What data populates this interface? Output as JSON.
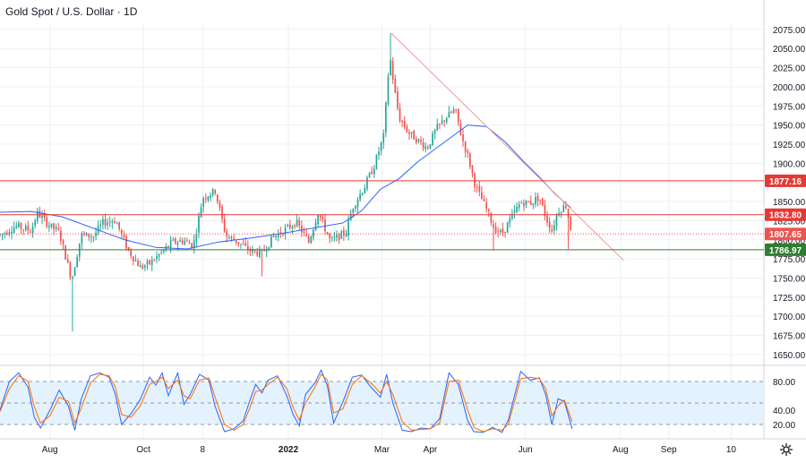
{
  "header": {
    "title": "Gold Spot / U.S. Dollar · 1D"
  },
  "colors": {
    "up": "#26a69a",
    "down": "#ef5350",
    "ma": "#2962ff",
    "trendline": "#ef9a9a",
    "resistance": "#e53935",
    "support": "#2e7d32",
    "last_price": "#ef5350",
    "stoch_k": "#2962ff",
    "stoch_d": "#ff6d00",
    "stoch_band": "#e3f2fd",
    "grid": "#eef0f3",
    "axis_text": "#131722"
  },
  "icons": {
    "settings": "gear-icon"
  },
  "chart_data": [
    {
      "type": "candlestick",
      "title": "Gold Spot / U.S. Dollar · 1D",
      "y_ticks": [
        1650,
        1675,
        1700,
        1725,
        1750,
        1775,
        1800,
        1825,
        1850,
        1875,
        1900,
        1925,
        1950,
        1975,
        2000,
        2025,
        2050,
        2075
      ],
      "y_tick_labels": [
        "1650.00",
        "1675.00",
        "1700.00",
        "1725.00",
        "1750.00",
        "1775.00",
        "1800.00",
        "1825.00",
        "1850.00",
        "1875.00",
        "1900.00",
        "1925.00",
        "1950.00",
        "1975.00",
        "2000.00",
        "2025.00",
        "2050.00",
        "2075.00"
      ],
      "ylim": [
        1637,
        2083
      ],
      "x_ticks": [
        {
          "label": "Aug",
          "day": 32
        },
        {
          "label": "Oct",
          "day": 92
        },
        {
          "label": "8",
          "day": 130
        },
        {
          "label": "2022",
          "day": 185
        },
        {
          "label": "Mar",
          "day": 245
        },
        {
          "label": "Apr",
          "day": 276
        },
        {
          "label": "Jun",
          "day": 337
        },
        {
          "label": "Aug",
          "day": 398
        },
        {
          "label": "Sep",
          "day": 429
        },
        {
          "label": "10",
          "day": 469
        }
      ],
      "xlim": [
        0,
        490
      ],
      "horizontal_levels": [
        {
          "value": 1877.16,
          "label": "1877.16",
          "role": "resistance"
        },
        {
          "value": 1832.8,
          "label": "1832.80",
          "role": "resistance"
        },
        {
          "value": 1786.97,
          "label": "1786.97",
          "role": "support"
        }
      ],
      "last_price": {
        "value": 1807.65,
        "label": "1807.65"
      },
      "trendline": {
        "from": [
          251,
          2070
        ],
        "to": [
          400,
          1773
        ]
      },
      "anchors": [
        [
          0,
          1806
        ],
        [
          10,
          1818
        ],
        [
          20,
          1812
        ],
        [
          24,
          1835
        ],
        [
          32,
          1818
        ],
        [
          38,
          1810
        ],
        [
          44,
          1763
        ],
        [
          46,
          1748
        ],
        [
          52,
          1806
        ],
        [
          60,
          1805
        ],
        [
          66,
          1822
        ],
        [
          74,
          1826
        ],
        [
          82,
          1787
        ],
        [
          90,
          1764
        ],
        [
          96,
          1769
        ],
        [
          104,
          1784
        ],
        [
          110,
          1796
        ],
        [
          118,
          1799
        ],
        [
          124,
          1792
        ],
        [
          130,
          1855
        ],
        [
          138,
          1864
        ],
        [
          145,
          1805
        ],
        [
          152,
          1798
        ],
        [
          160,
          1786
        ],
        [
          168,
          1782
        ],
        [
          175,
          1803
        ],
        [
          182,
          1812
        ],
        [
          190,
          1823
        ],
        [
          198,
          1797
        ],
        [
          204,
          1836
        ],
        [
          212,
          1798
        ],
        [
          222,
          1810
        ],
        [
          226,
          1842
        ],
        [
          234,
          1870
        ],
        [
          240,
          1897
        ],
        [
          246,
          1935
        ],
        [
          250,
          2042
        ],
        [
          253,
          1996
        ],
        [
          256,
          1960
        ],
        [
          262,
          1940
        ],
        [
          268,
          1930
        ],
        [
          274,
          1920
        ],
        [
          280,
          1945
        ],
        [
          286,
          1960
        ],
        [
          292,
          1970
        ],
        [
          296,
          1935
        ],
        [
          300,
          1910
        ],
        [
          305,
          1870
        ],
        [
          312,
          1840
        ],
        [
          317,
          1815
        ],
        [
          322,
          1808
        ],
        [
          326,
          1822
        ],
        [
          334,
          1849
        ],
        [
          340,
          1848
        ],
        [
          346,
          1856
        ],
        [
          350,
          1830
        ],
        [
          354,
          1812
        ],
        [
          358,
          1838
        ],
        [
          363,
          1845
        ],
        [
          367,
          1805
        ]
      ],
      "ma_series": [
        [
          0,
          1836
        ],
        [
          20,
          1837
        ],
        [
          40,
          1830
        ],
        [
          60,
          1815
        ],
        [
          80,
          1800
        ],
        [
          100,
          1790
        ],
        [
          120,
          1788
        ],
        [
          140,
          1797
        ],
        [
          160,
          1802
        ],
        [
          180,
          1808
        ],
        [
          200,
          1815
        ],
        [
          220,
          1822
        ],
        [
          232,
          1838
        ],
        [
          244,
          1866
        ],
        [
          256,
          1880
        ],
        [
          268,
          1902
        ],
        [
          280,
          1920
        ],
        [
          292,
          1938
        ],
        [
          300,
          1950
        ],
        [
          312,
          1948
        ],
        [
          324,
          1928
        ],
        [
          336,
          1902
        ],
        [
          346,
          1882
        ],
        [
          356,
          1860
        ],
        [
          366,
          1842
        ]
      ]
    },
    {
      "type": "line",
      "title": "Stochastic",
      "ylim": [
        0,
        100
      ],
      "y_ticks": [
        20,
        40,
        80
      ],
      "y_tick_labels": [
        "20.00",
        "40.00",
        "80.00"
      ],
      "band": [
        20,
        80
      ],
      "midline": 50,
      "series": [
        {
          "role": "k",
          "points": [
            [
              0,
              40
            ],
            [
              6,
              80
            ],
            [
              12,
              92
            ],
            [
              18,
              72
            ],
            [
              22,
              30
            ],
            [
              26,
              15
            ],
            [
              32,
              40
            ],
            [
              38,
              68
            ],
            [
              44,
              45
            ],
            [
              48,
              12
            ],
            [
              52,
              55
            ],
            [
              58,
              88
            ],
            [
              64,
              92
            ],
            [
              70,
              86
            ],
            [
              74,
              62
            ],
            [
              78,
              20
            ],
            [
              84,
              35
            ],
            [
              90,
              55
            ],
            [
              96,
              86
            ],
            [
              100,
              75
            ],
            [
              104,
              92
            ],
            [
              108,
              60
            ],
            [
              114,
              92
            ],
            [
              118,
              48
            ],
            [
              122,
              62
            ],
            [
              128,
              90
            ],
            [
              134,
              82
            ],
            [
              138,
              45
            ],
            [
              144,
              10
            ],
            [
              150,
              14
            ],
            [
              156,
              25
            ],
            [
              160,
              52
            ],
            [
              164,
              76
            ],
            [
              168,
              64
            ],
            [
              172,
              82
            ],
            [
              178,
              88
            ],
            [
              184,
              60
            ],
            [
              188,
              34
            ],
            [
              192,
              18
            ],
            [
              196,
              62
            ],
            [
              202,
              78
            ],
            [
              206,
              96
            ],
            [
              210,
              74
            ],
            [
              214,
              22
            ],
            [
              220,
              52
            ],
            [
              226,
              86
            ],
            [
              232,
              89
            ],
            [
              238,
              72
            ],
            [
              244,
              58
            ],
            [
              248,
              90
            ],
            [
              252,
              50
            ],
            [
              258,
              12
            ],
            [
              264,
              10
            ],
            [
              270,
              15
            ],
            [
              276,
              14
            ],
            [
              282,
              28
            ],
            [
              288,
              92
            ],
            [
              294,
              76
            ],
            [
              300,
              25
            ],
            [
              304,
              10
            ],
            [
              310,
              9
            ],
            [
              316,
              16
            ],
            [
              322,
              9
            ],
            [
              326,
              26
            ],
            [
              334,
              94
            ],
            [
              340,
              82
            ],
            [
              346,
              85
            ],
            [
              350,
              62
            ],
            [
              354,
              20
            ],
            [
              358,
              56
            ],
            [
              362,
              52
            ],
            [
              367,
              14
            ]
          ]
        },
        {
          "role": "d",
          "points": [
            [
              0,
              38
            ],
            [
              6,
              70
            ],
            [
              12,
              88
            ],
            [
              18,
              80
            ],
            [
              22,
              45
            ],
            [
              26,
              22
            ],
            [
              32,
              32
            ],
            [
              38,
              58
            ],
            [
              44,
              52
            ],
            [
              48,
              22
            ],
            [
              52,
              42
            ],
            [
              58,
              78
            ],
            [
              64,
              90
            ],
            [
              70,
              88
            ],
            [
              74,
              72
            ],
            [
              78,
              34
            ],
            [
              84,
              30
            ],
            [
              90,
              46
            ],
            [
              96,
              76
            ],
            [
              100,
              80
            ],
            [
              104,
              86
            ],
            [
              108,
              70
            ],
            [
              114,
              82
            ],
            [
              118,
              60
            ],
            [
              122,
              56
            ],
            [
              128,
              82
            ],
            [
              134,
              85
            ],
            [
              138,
              58
            ],
            [
              144,
              20
            ],
            [
              150,
              12
            ],
            [
              156,
              20
            ],
            [
              160,
              42
            ],
            [
              164,
              66
            ],
            [
              168,
              68
            ],
            [
              172,
              76
            ],
            [
              178,
              86
            ],
            [
              184,
              70
            ],
            [
              188,
              44
            ],
            [
              192,
              26
            ],
            [
              196,
              50
            ],
            [
              202,
              72
            ],
            [
              206,
              90
            ],
            [
              210,
              82
            ],
            [
              214,
              36
            ],
            [
              220,
              42
            ],
            [
              226,
              76
            ],
            [
              232,
              88
            ],
            [
              238,
              78
            ],
            [
              244,
              64
            ],
            [
              248,
              80
            ],
            [
              252,
              62
            ],
            [
              258,
              24
            ],
            [
              264,
              12
            ],
            [
              270,
              13
            ],
            [
              276,
              14
            ],
            [
              282,
              22
            ],
            [
              288,
              80
            ],
            [
              294,
              82
            ],
            [
              300,
              40
            ],
            [
              304,
              16
            ],
            [
              310,
              10
            ],
            [
              316,
              14
            ],
            [
              322,
              12
            ],
            [
              326,
              20
            ],
            [
              334,
              84
            ],
            [
              340,
              86
            ],
            [
              346,
              84
            ],
            [
              350,
              70
            ],
            [
              354,
              32
            ],
            [
              358,
              46
            ],
            [
              362,
              54
            ],
            [
              367,
              24
            ]
          ]
        }
      ]
    }
  ]
}
